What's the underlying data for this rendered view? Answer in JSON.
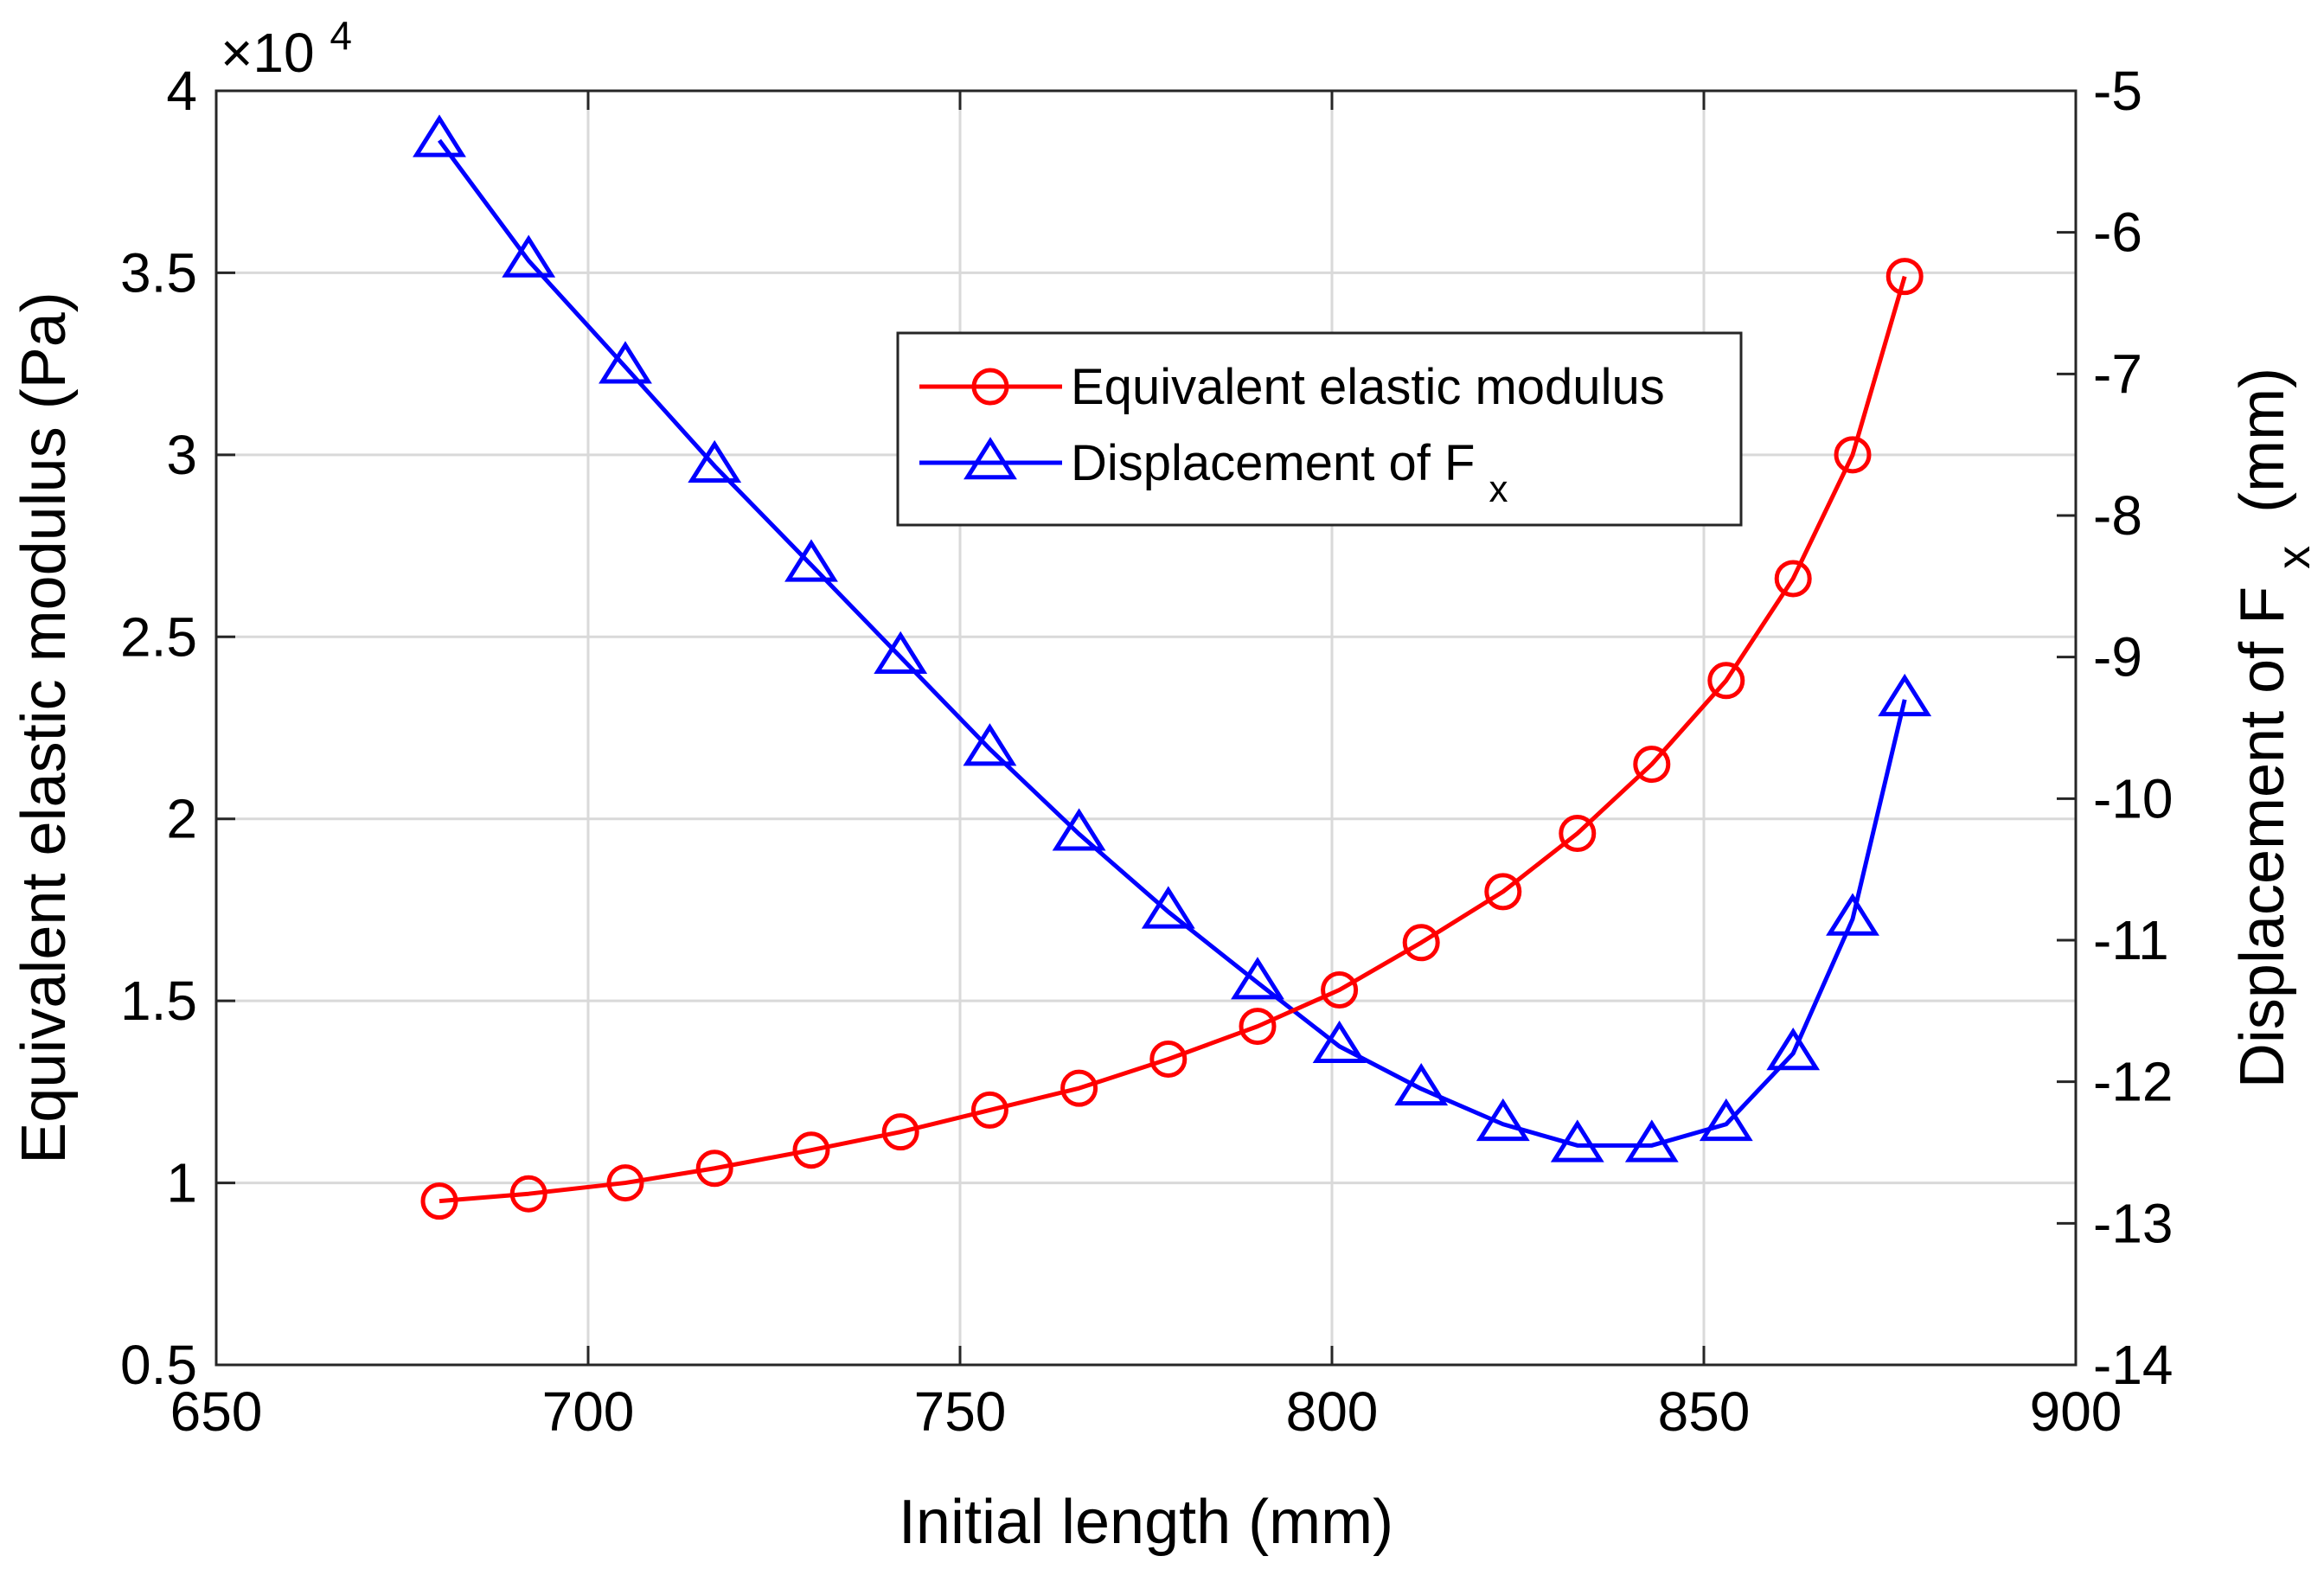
{
  "chart_data": {
    "type": "line",
    "xlabel": "Initial length (mm)",
    "ylabel_left": "Equivalent elastic modulus (Pa)",
    "ylabel_right": "Displacement of F",
    "ylabel_right_sub": "x",
    "ylabel_right_suffix": "(mm)",
    "left_exponent_label": "×10",
    "left_exponent_power": "4",
    "xlim": [
      650,
      900
    ],
    "ylim_left": [
      0.5,
      4
    ],
    "ylim_right": [
      -14,
      -5
    ],
    "x_ticks": [
      "650",
      "700",
      "750",
      "800",
      "850",
      "900"
    ],
    "y_left_ticks": [
      "0.5",
      "1",
      "1.5",
      "2",
      "2.5",
      "3",
      "3.5",
      "4"
    ],
    "y_right_ticks": [
      "-5",
      "-6",
      "-7",
      "-8",
      "-9",
      "-10",
      "-11",
      "-12",
      "-13",
      "-14"
    ],
    "grid": true,
    "legend_position": "top-center",
    "series": [
      {
        "name": "Equivalent elastic modulus",
        "axis": "left",
        "color": "#ff0000",
        "marker": "circle",
        "x": [
          680,
          692,
          705,
          717,
          730,
          742,
          754,
          766,
          778,
          790,
          801,
          812,
          823,
          833,
          843,
          853,
          862,
          870,
          877
        ],
        "values": [
          0.95,
          0.97,
          1.0,
          1.04,
          1.09,
          1.14,
          1.2,
          1.26,
          1.34,
          1.43,
          1.53,
          1.66,
          1.8,
          1.96,
          2.15,
          2.38,
          2.66,
          3.0,
          3.49
        ]
      },
      {
        "name": "Displacement of F",
        "name_sub": "x",
        "axis": "right",
        "color": "#0000ff",
        "marker": "triangle",
        "x": [
          680,
          692,
          705,
          717,
          730,
          742,
          754,
          766,
          778,
          790,
          801,
          812,
          823,
          833,
          843,
          853,
          862,
          870,
          877
        ],
        "values": [
          -5.35,
          -6.2,
          -6.95,
          -7.65,
          -8.35,
          -9.0,
          -9.65,
          -10.25,
          -10.8,
          -11.3,
          -11.75,
          -12.05,
          -12.3,
          -12.45,
          -12.45,
          -12.3,
          -11.8,
          -10.85,
          -9.3
        ]
      }
    ]
  }
}
